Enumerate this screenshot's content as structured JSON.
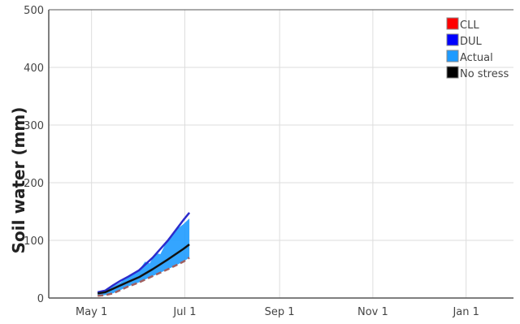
{
  "chart_data": {
    "type": "line",
    "title": "",
    "xlabel": "",
    "ylabel": "Soil water (mm)",
    "ylim": [
      0,
      500
    ],
    "xlim": [
      "2023-04-03",
      "2024-02-01"
    ],
    "yticks": [
      "0",
      "100",
      "200",
      "300",
      "400",
      "500"
    ],
    "xticks": [
      {
        "date": "2023-05-01",
        "label": "May 1"
      },
      {
        "date": "2023-07-01",
        "label": "Jul 1"
      },
      {
        "date": "2023-09-01",
        "label": "Sep 1"
      },
      {
        "date": "2023-11-01",
        "label": "Nov 1"
      },
      {
        "date": "2024-01-01",
        "label": "Jan 1"
      }
    ],
    "grid": true,
    "legend": {
      "position": "top-right",
      "items": [
        {
          "label": "CLL",
          "color": "#ff0000"
        },
        {
          "label": "DUL",
          "color": "#0000ff"
        },
        {
          "label": "Actual",
          "color": "#1e9bff"
        },
        {
          "label": "No stress",
          "color": "#000000"
        }
      ]
    },
    "series": [
      {
        "name": "DUL",
        "color": "#2b2bcc",
        "x": [
          "2023-05-05",
          "2023-05-10",
          "2023-05-15",
          "2023-05-20",
          "2023-05-25",
          "2023-06-01",
          "2023-06-10",
          "2023-06-20",
          "2023-06-30",
          "2023-07-04"
        ],
        "y": [
          10,
          13,
          22,
          30,
          37,
          48,
          70,
          100,
          135,
          148
        ]
      },
      {
        "name": "CLL",
        "color": "#a06060",
        "x": [
          "2023-05-05",
          "2023-05-10",
          "2023-05-15",
          "2023-05-20",
          "2023-05-25",
          "2023-06-01",
          "2023-06-10",
          "2023-06-20",
          "2023-06-30",
          "2023-07-04"
        ],
        "y": [
          4,
          5,
          8,
          14,
          20,
          27,
          38,
          50,
          63,
          70
        ]
      },
      {
        "name": "Actual",
        "color": "#1e9bff",
        "x": [
          "2023-05-05",
          "2023-05-10",
          "2023-05-15",
          "2023-05-20",
          "2023-05-25",
          "2023-06-01",
          "2023-06-05",
          "2023-06-08",
          "2023-06-12",
          "2023-06-15",
          "2023-06-20",
          "2023-06-25",
          "2023-06-30",
          "2023-07-04"
        ],
        "y": [
          10,
          12,
          20,
          27,
          38,
          48,
          63,
          60,
          78,
          76,
          103,
          118,
          128,
          138
        ]
      },
      {
        "name": "No stress",
        "color": "#111111",
        "x": [
          "2023-05-05",
          "2023-05-10",
          "2023-05-15",
          "2023-05-20",
          "2023-05-25",
          "2023-06-01",
          "2023-06-10",
          "2023-06-20",
          "2023-06-30",
          "2023-07-04"
        ],
        "y": [
          8,
          10,
          16,
          22,
          28,
          36,
          50,
          67,
          85,
          93
        ]
      }
    ]
  }
}
